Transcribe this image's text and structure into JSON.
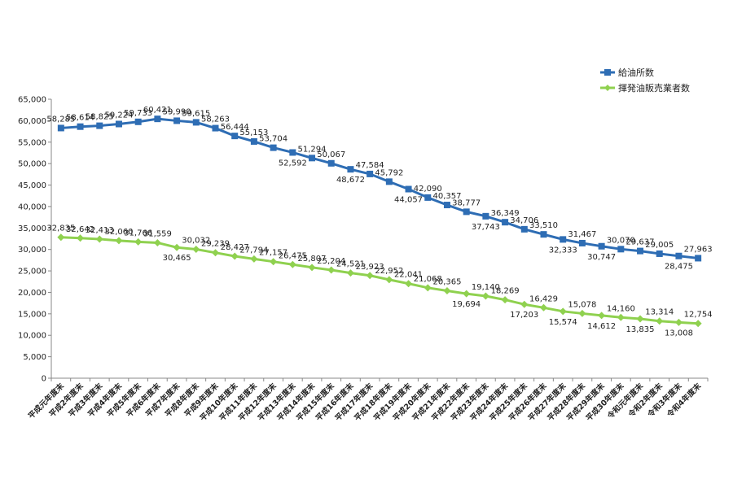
{
  "chart_data": {
    "type": "line",
    "title": "",
    "xlabel": "",
    "ylabel": "",
    "ylim": [
      0,
      65000
    ],
    "yticks": [
      "0",
      "5,000",
      "10,000",
      "15,000",
      "20,000",
      "25,000",
      "30,000",
      "35,000",
      "40,000",
      "45,000",
      "50,000",
      "55,000",
      "60,000",
      "65,000"
    ],
    "grid": false,
    "legend_position": "top-right",
    "categories": [
      "平成元年度末",
      "平成2年度末",
      "平成3年度末",
      "平成4年度末",
      "平成5年度末",
      "平成6年度末",
      "平成7年度末",
      "平成8年度末",
      "平成9年度末",
      "平成10年度末",
      "平成11年度末",
      "平成12年度末",
      "平成13年度末",
      "平成14年度末",
      "平成15年度末",
      "平成16年度末",
      "平成17年度末",
      "平成18年度末",
      "平成19年度末",
      "平成20年度末",
      "平成21年度末",
      "平成22年度末",
      "平成23年度末",
      "平成24年度末",
      "平成25年度末",
      "平成26年度末",
      "平成27年度末",
      "平成28年度末",
      "平成29年度末",
      "平成30年度末",
      "令和元年度末",
      "令和2年度末",
      "令和3年度末",
      "令和4年度末"
    ],
    "series": [
      {
        "name": "給油所数",
        "color": "#2e6db4",
        "marker": "square",
        "values": [
          58285,
          58614,
          58825,
          59224,
          59733,
          60421,
          59990,
          59615,
          58263,
          56444,
          55153,
          53704,
          52592,
          51294,
          50067,
          48672,
          47584,
          45792,
          44057,
          42090,
          40357,
          38777,
          37743,
          36349,
          34706,
          33510,
          32333,
          31467,
          30747,
          30070,
          29637,
          29005,
          28475,
          27963
        ]
      },
      {
        "name": "揮発油販売業者数",
        "color": "#8fd14f",
        "marker": "diamond",
        "values": [
          32835,
          32642,
          32413,
          32060,
          31766,
          31559,
          30465,
          30032,
          29239,
          28427,
          27794,
          27157,
          26475,
          25807,
          25204,
          24521,
          23923,
          22952,
          22041,
          21068,
          20365,
          19694,
          19140,
          18269,
          17203,
          16429,
          15574,
          15078,
          14612,
          14160,
          13835,
          13314,
          13008,
          12754
        ]
      }
    ]
  }
}
